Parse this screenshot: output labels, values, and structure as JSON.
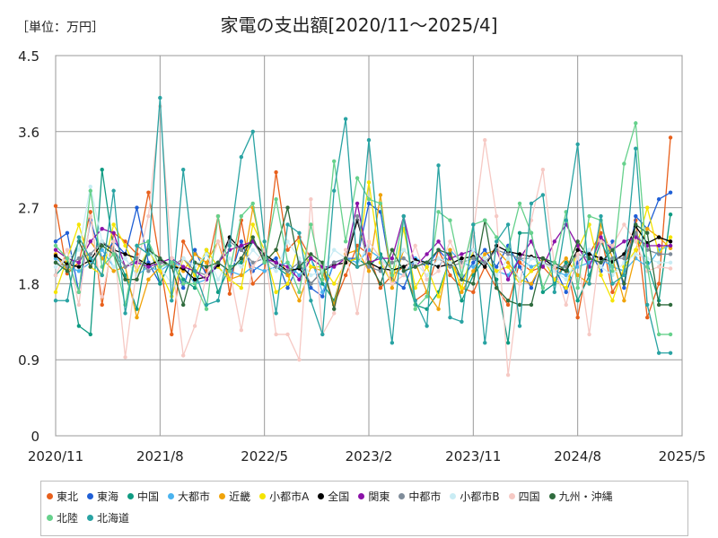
{
  "unit_label": "［単位：万円］",
  "chart_data": {
    "type": "line",
    "title": "家電の支出額[2020/11〜2025/4]",
    "xlabel": "",
    "ylabel": "",
    "ylim": [
      0,
      4.5
    ],
    "yticks": [
      {
        "value": 0,
        "label": "0"
      },
      {
        "value": 0.9,
        "label": "0.9"
      },
      {
        "value": 1.8,
        "label": "1.8"
      },
      {
        "value": 2.7,
        "label": "2.7"
      },
      {
        "value": 3.6,
        "label": "3.6"
      },
      {
        "value": 4.5,
        "label": "4.5"
      }
    ],
    "xticks": [
      {
        "index": 0,
        "label": "2020/11"
      },
      {
        "index": 9,
        "label": "2021/8"
      },
      {
        "index": 18,
        "label": "2022/5"
      },
      {
        "index": 27,
        "label": "2023/2"
      },
      {
        "index": 36,
        "label": "2023/11"
      },
      {
        "index": 45,
        "label": "2024/8"
      },
      {
        "index": 54,
        "label": "2025/5"
      }
    ],
    "grid": true,
    "legend_position": "bottom",
    "x_start": "2020/11",
    "x_end": "2025/4",
    "series": [
      {
        "name": "東北",
        "color": "#e8601c",
        "values": [
          2.72,
          1.92,
          2.05,
          2.65,
          1.55,
          2.4,
          2.3,
          2.15,
          2.88,
          2.05,
          1.2,
          2.3,
          2.05,
          1.95,
          2.6,
          1.68,
          2.55,
          1.8,
          1.95,
          3.12,
          2.2,
          2.35,
          2.1,
          2.0,
          1.55,
          1.9,
          2.25,
          2.15,
          1.75,
          1.9,
          2.0,
          1.6,
          1.7,
          2.2,
          1.9,
          1.75,
          1.7,
          2.0,
          1.75,
          1.55,
          2.05,
          1.95,
          2.0,
          1.85,
          2.05,
          1.4,
          2.15,
          2.4,
          1.7,
          1.95,
          2.55,
          1.4,
          1.8,
          3.53
        ]
      },
      {
        "name": "東海",
        "color": "#1f5fd6",
        "values": [
          2.3,
          2.4,
          1.7,
          2.55,
          2.1,
          2.3,
          2.15,
          2.7,
          2.05,
          1.8,
          2.1,
          1.75,
          2.2,
          1.9,
          2.0,
          1.85,
          2.3,
          1.95,
          2.05,
          2.1,
          1.75,
          2.05,
          1.75,
          1.65,
          2.05,
          2.1,
          2.1,
          2.75,
          2.65,
          1.85,
          1.75,
          2.1,
          2.0,
          2.2,
          2.05,
          1.85,
          2.05,
          2.2,
          2.0,
          2.25,
          2.0,
          1.75,
          2.1,
          2.0,
          1.7,
          2.05,
          2.2,
          1.95,
          2.3,
          1.75,
          2.6,
          2.45,
          2.8,
          2.88
        ]
      },
      {
        "name": "中国",
        "color": "#0f9b82",
        "values": [
          1.9,
          2.05,
          1.3,
          1.2,
          3.15,
          2.2,
          1.9,
          1.5,
          2.3,
          1.8,
          2.1,
          1.85,
          1.75,
          2.2,
          1.7,
          2.0,
          2.05,
          2.3,
          2.1,
          2.0,
          1.9,
          2.0,
          2.1,
          1.8,
          1.6,
          2.05,
          2.1,
          2.0,
          2.15,
          1.95,
          2.0,
          1.55,
          1.5,
          1.7,
          2.1,
          1.6,
          1.9,
          2.1,
          1.85,
          1.1,
          2.4,
          2.4,
          1.7,
          1.8,
          2.05,
          1.6,
          1.9,
          2.3,
          2.0,
          1.95,
          2.4,
          2.05,
          1.6,
          2.62
        ]
      },
      {
        "name": "大都市",
        "color": "#4ab3ef",
        "values": [
          2.1,
          2.0,
          1.95,
          2.05,
          2.2,
          2.0,
          2.1,
          1.9,
          2.0,
          1.95,
          2.05,
          2.0,
          1.8,
          1.85,
          2.05,
          1.95,
          1.9,
          2.0,
          1.95,
          2.0,
          2.05,
          1.9,
          2.1,
          1.7,
          2.05,
          2.1,
          2.05,
          2.2,
          2.1,
          1.95,
          1.9,
          2.1,
          2.05,
          2.0,
          2.2,
          2.05,
          2.0,
          2.1,
          1.95,
          1.9,
          2.1,
          2.0,
          2.05,
          1.95,
          1.9,
          2.0,
          2.05,
          2.1,
          2.0,
          1.95,
          2.1,
          2.0,
          2.2,
          2.25
        ]
      },
      {
        "name": "近畿",
        "color": "#f0a30a",
        "values": [
          2.15,
          1.95,
          2.05,
          2.3,
          2.1,
          1.95,
          2.0,
          1.4,
          1.85,
          2.0,
          2.05,
          1.95,
          2.15,
          2.05,
          2.3,
          1.85,
          1.9,
          2.7,
          2.05,
          2.2,
          1.9,
          1.6,
          2.0,
          1.95,
          1.55,
          2.15,
          2.2,
          1.95,
          2.85,
          1.75,
          2.2,
          2.05,
          1.7,
          1.5,
          2.2,
          1.7,
          1.95,
          2.15,
          2.2,
          2.05,
          1.85,
          1.8,
          2.05,
          1.95,
          2.1,
          1.9,
          1.8,
          2.5,
          2.1,
          1.6,
          2.15,
          2.45,
          2.35,
          2.22
        ]
      },
      {
        "name": "小都市A",
        "color": "#f5e400",
        "values": [
          1.7,
          2.1,
          2.5,
          2.0,
          1.9,
          2.5,
          2.25,
          1.95,
          2.2,
          1.95,
          1.65,
          2.1,
          1.9,
          2.2,
          2.0,
          1.85,
          1.75,
          2.5,
          2.2,
          1.7,
          1.8,
          2.3,
          2.0,
          2.0,
          1.8,
          2.05,
          2.1,
          3.0,
          2.05,
          1.8,
          2.45,
          1.75,
          2.0,
          1.65,
          2.1,
          1.75,
          2.2,
          2.1,
          1.95,
          2.0,
          1.8,
          1.95,
          2.1,
          1.85,
          1.75,
          2.2,
          2.5,
          1.9,
          1.6,
          2.0,
          2.2,
          2.7,
          2.15,
          2.35
        ]
      },
      {
        "name": "全国",
        "color": "#000000",
        "values": [
          2.13,
          2.03,
          2.0,
          2.08,
          2.28,
          2.2,
          2.15,
          2.1,
          2.02,
          2.08,
          2.0,
          1.98,
          1.85,
          1.88,
          2.02,
          2.35,
          2.2,
          2.3,
          2.15,
          2.05,
          1.95,
          1.98,
          1.8,
          1.95,
          2.02,
          2.05,
          2.55,
          2.05,
          1.98,
          1.96,
          2.0,
          2.08,
          2.05,
          2.0,
          2.03,
          2.1,
          2.12,
          2.0,
          2.25,
          2.18,
          2.15,
          2.12,
          2.1,
          2.0,
          1.95,
          2.2,
          2.15,
          2.1,
          2.06,
          2.15,
          2.48,
          2.28,
          2.35,
          2.3
        ]
      },
      {
        "name": "関東",
        "color": "#8b12a8",
        "values": [
          2.2,
          2.1,
          2.05,
          2.3,
          2.45,
          2.4,
          2.0,
          2.05,
          2.0,
          2.05,
          2.1,
          2.0,
          1.95,
          1.85,
          2.05,
          2.2,
          2.25,
          2.3,
          2.1,
          2.05,
          2.0,
          1.85,
          2.1,
          2.0,
          2.0,
          2.1,
          2.75,
          2.05,
          2.1,
          2.1,
          2.6,
          2.0,
          2.15,
          2.3,
          2.1,
          2.15,
          2.2,
          2.05,
          2.2,
          1.85,
          2.1,
          2.3,
          2.0,
          2.3,
          2.5,
          2.25,
          2.0,
          2.35,
          2.2,
          2.3,
          2.35,
          2.25,
          2.25,
          2.25
        ]
      },
      {
        "name": "中都市",
        "color": "#7f8c9a",
        "values": [
          2.05,
          2.0,
          2.1,
          2.15,
          2.3,
          2.2,
          2.0,
          2.1,
          1.95,
          2.05,
          2.0,
          2.1,
          1.95,
          1.9,
          2.05,
          2.3,
          2.2,
          2.05,
          2.1,
          2.0,
          1.95,
          2.05,
          1.8,
          1.95,
          2.05,
          2.1,
          2.6,
          2.0,
          1.95,
          2.05,
          2.1,
          2.0,
          2.05,
          2.1,
          2.0,
          2.05,
          2.1,
          2.05,
          2.2,
          2.15,
          2.1,
          2.1,
          2.05,
          2.0,
          2.0,
          2.15,
          2.1,
          2.05,
          2.1,
          2.1,
          2.4,
          2.2,
          2.15,
          2.15
        ]
      },
      {
        "name": "小都市B",
        "color": "#c9ecf4",
        "values": [
          2.0,
          2.1,
          2.2,
          2.95,
          2.3,
          2.0,
          2.1,
          1.9,
          2.2,
          2.0,
          1.8,
          2.1,
          2.0,
          2.15,
          1.85,
          2.1,
          2.0,
          2.2,
          2.05,
          1.95,
          2.3,
          2.1,
          1.9,
          1.95,
          2.2,
          2.1,
          2.0,
          2.3,
          2.1,
          1.95,
          2.2,
          2.05,
          1.9,
          2.1,
          2.05,
          1.95,
          2.2,
          2.1,
          1.9,
          2.1,
          1.85,
          2.1,
          2.05,
          1.95,
          1.85,
          2.1,
          2.2,
          2.0,
          1.9,
          2.05,
          2.15,
          2.1,
          2.05,
          2.05
        ]
      },
      {
        "name": "四国",
        "color": "#f6c9c4",
        "values": [
          1.9,
          2.2,
          1.55,
          2.6,
          1.65,
          2.3,
          0.93,
          2.0,
          2.6,
          3.9,
          2.1,
          0.95,
          1.3,
          1.9,
          2.3,
          1.95,
          1.25,
          2.0,
          2.2,
          1.2,
          1.2,
          0.9,
          2.8,
          1.2,
          1.45,
          2.2,
          1.45,
          2.3,
          2.1,
          1.8,
          1.9,
          2.25,
          1.85,
          1.95,
          2.3,
          2.0,
          2.4,
          3.5,
          2.6,
          0.72,
          1.8,
          2.55,
          3.15,
          2.0,
          1.55,
          2.15,
          1.2,
          2.3,
          2.25,
          2.5,
          2.3,
          1.95,
          2.0,
          1.98
        ]
      },
      {
        "name": "九州・沖縄",
        "color": "#2f6b3d",
        "values": [
          2.05,
          1.95,
          2.3,
          2.0,
          2.25,
          2.15,
          1.85,
          1.85,
          2.2,
          2.1,
          2.0,
          1.55,
          2.05,
          2.0,
          2.05,
          1.95,
          2.1,
          2.35,
          2.05,
          2.2,
          2.7,
          2.0,
          2.15,
          2.05,
          1.5,
          2.1,
          2.0,
          2.05,
          1.8,
          2.2,
          1.95,
          2.0,
          2.05,
          2.2,
          2.15,
          1.85,
          1.8,
          2.55,
          1.75,
          1.6,
          1.55,
          1.55,
          2.1,
          2.05,
          1.95,
          2.3,
          2.1,
          2.05,
          2.2,
          1.8,
          2.5,
          2.4,
          1.55,
          1.55
        ]
      },
      {
        "name": "北陸",
        "color": "#66d18c",
        "values": [
          2.25,
          2.1,
          1.7,
          2.9,
          2.0,
          2.15,
          1.55,
          2.25,
          2.3,
          2.0,
          2.05,
          1.8,
          1.8,
          1.5,
          2.6,
          1.95,
          2.6,
          2.75,
          2.05,
          2.8,
          2.05,
          1.7,
          2.5,
          1.85,
          3.25,
          2.3,
          3.05,
          2.8,
          2.75,
          1.9,
          2.6,
          1.5,
          1.65,
          2.65,
          2.55,
          1.9,
          2.5,
          2.55,
          2.35,
          2.2,
          2.75,
          2.4,
          1.75,
          2.05,
          2.65,
          1.75,
          2.6,
          2.55,
          1.95,
          3.22,
          3.7,
          2.0,
          1.2,
          1.2
        ]
      },
      {
        "name": "北海道",
        "color": "#29a3a3",
        "values": [
          1.6,
          1.6,
          2.35,
          2.1,
          1.9,
          2.9,
          1.45,
          2.25,
          2.15,
          4.0,
          1.6,
          3.15,
          1.95,
          1.55,
          1.6,
          2.25,
          3.3,
          3.6,
          2.3,
          1.45,
          2.5,
          2.4,
          1.6,
          1.2,
          2.9,
          3.75,
          2.0,
          3.5,
          2.1,
          1.1,
          2.6,
          1.6,
          1.3,
          3.2,
          1.4,
          1.35,
          2.5,
          1.1,
          2.3,
          2.5,
          1.3,
          2.75,
          2.85,
          1.7,
          2.55,
          3.45,
          1.8,
          2.6,
          1.8,
          1.9,
          3.4,
          1.55,
          0.98,
          0.98
        ]
      }
    ]
  }
}
